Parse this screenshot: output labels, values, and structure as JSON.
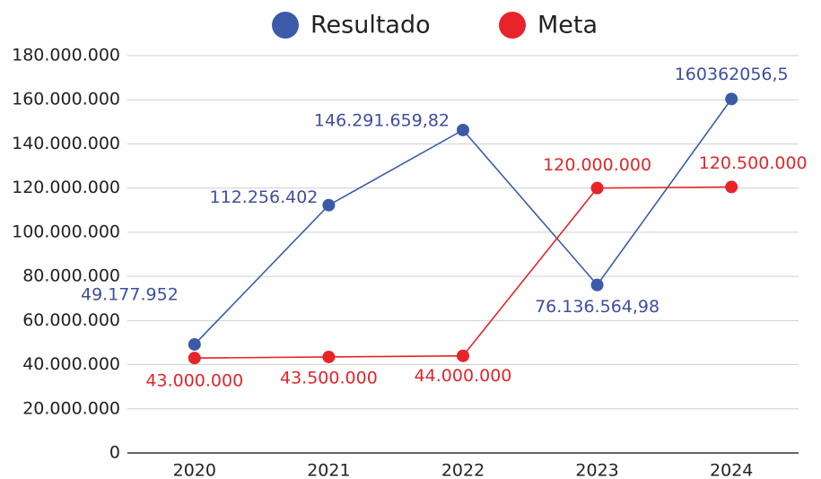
{
  "chart_data": {
    "type": "line",
    "categories": [
      "2020",
      "2021",
      "2022",
      "2023",
      "2024"
    ],
    "series": [
      {
        "name": "Resultado",
        "color": "#3b5ba9",
        "values": [
          49177952,
          112256402,
          146291659.82,
          76136564.98,
          160362056.5
        ],
        "value_labels": [
          "49.177.952",
          "112.256.402",
          "146.291.659,82",
          "76.136.564,98",
          "160362056,5"
        ]
      },
      {
        "name": "Meta",
        "color": "#e8232a",
        "values": [
          43000000,
          43500000,
          44000000,
          120000000,
          120500000
        ],
        "value_labels": [
          "43.000.000",
          "43.500.000",
          "44.000.000",
          "120.000.000",
          "120.500.000"
        ]
      }
    ],
    "ylim": [
      0,
      180000000
    ],
    "yticks": [
      0,
      {
        "value": 20000000,
        "label": "20.000.000"
      },
      {
        "value": 40000000,
        "label": "40.000.000"
      },
      {
        "value": 60000000,
        "label": "60.000.000"
      },
      {
        "value": 80000000,
        "label": "80.000.000"
      },
      {
        "value": 100000000,
        "label": "100.000.000"
      },
      {
        "value": 120000000,
        "label": "120.000.000"
      },
      {
        "value": 140000000,
        "label": "140.000.000"
      },
      {
        "value": 160000000,
        "label": "160.000.000"
      },
      {
        "value": 180000000,
        "label": "180.000.000"
      }
    ],
    "grid": true,
    "legend": "top"
  }
}
